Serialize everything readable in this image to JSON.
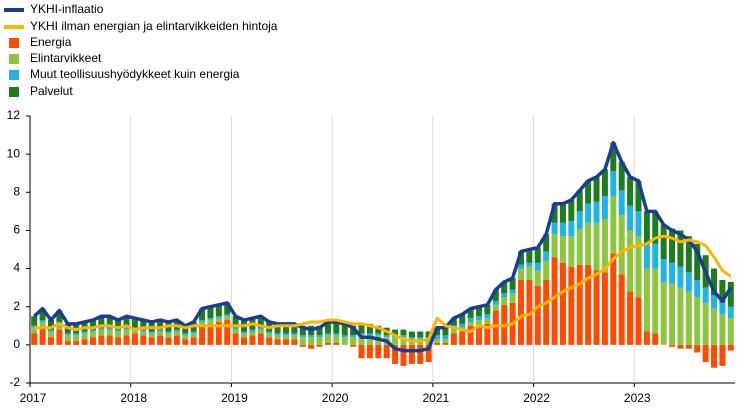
{
  "chart_data": {
    "type": "bar",
    "categories": [
      "2017",
      null,
      null,
      null,
      null,
      null,
      null,
      null,
      null,
      null,
      null,
      null,
      "2018",
      null,
      null,
      null,
      null,
      null,
      null,
      null,
      null,
      null,
      null,
      null,
      "2019",
      null,
      null,
      null,
      null,
      null,
      null,
      null,
      null,
      null,
      null,
      null,
      "2020",
      null,
      null,
      null,
      null,
      null,
      null,
      null,
      null,
      null,
      null,
      null,
      "2021",
      null,
      null,
      null,
      null,
      null,
      null,
      null,
      null,
      null,
      null,
      null,
      "2022",
      null,
      null,
      null,
      null,
      null,
      null,
      null,
      null,
      null,
      null,
      null,
      "2023",
      null,
      null,
      null,
      null,
      null,
      null,
      null,
      null,
      null,
      null,
      null
    ],
    "ylim": [
      -2,
      12
    ],
    "yticks": [
      -2,
      0,
      2,
      4,
      6,
      8,
      10,
      12
    ],
    "grid": true,
    "series": [
      {
        "name": "YKHI-inflaatio",
        "color": "#1b3d91",
        "type": "line",
        "values": [
          1.5,
          1.9,
          1.3,
          1.8,
          1.1,
          1.1,
          1.2,
          1.3,
          1.5,
          1.5,
          1.3,
          1.5,
          1.4,
          1.3,
          1.2,
          1.3,
          1.2,
          1.3,
          1.0,
          1.2,
          1.9,
          2.0,
          2.1,
          2.2,
          1.5,
          1.3,
          1.4,
          1.5,
          1.2,
          1.1,
          1.1,
          1.1,
          0.9,
          0.8,
          0.9,
          1.2,
          1.2,
          1.1,
          0.9,
          0.4,
          0.4,
          0.3,
          0.2,
          -0.2,
          -0.3,
          -0.3,
          -0.3,
          -0.2,
          0.9,
          0.9,
          1.4,
          1.6,
          1.9,
          2.0,
          2.1,
          2.9,
          3.3,
          3.5,
          4.9,
          5.0,
          5.1,
          5.8,
          7.4,
          7.4,
          7.6,
          8.1,
          8.6,
          8.8,
          9.2,
          10.6,
          9.6,
          8.8,
          8.6,
          7.0,
          7.0,
          6.3,
          6.0,
          5.8,
          5.5,
          4.9,
          3.8,
          2.8,
          2.3,
          3.0
        ]
      },
      {
        "name": "YKHI ilman energian ja elintarvikkeiden hintoja",
        "color": "#ffb400",
        "type": "line",
        "values": [
          0.9,
          0.9,
          0.9,
          1.1,
          0.9,
          0.8,
          0.9,
          0.9,
          1.0,
          1.0,
          0.9,
          1.0,
          0.8,
          0.9,
          0.9,
          0.9,
          1.0,
          1.0,
          0.9,
          1.0,
          1.0,
          1.0,
          1.0,
          1.0,
          1.0,
          1.0,
          1.1,
          1.0,
          0.9,
          1.0,
          1.0,
          1.0,
          1.1,
          1.2,
          1.2,
          1.3,
          1.3,
          1.2,
          1.1,
          1.1,
          1.0,
          0.9,
          0.7,
          0.5,
          0.3,
          0.2,
          0.2,
          0.3,
          1.4,
          1.0,
          0.9,
          0.8,
          0.7,
          1.0,
          0.9,
          1.0,
          1.0,
          1.1,
          1.5,
          1.6,
          2.0,
          2.2,
          2.5,
          2.8,
          3.0,
          3.2,
          3.5,
          3.7,
          4.0,
          4.5,
          4.9,
          5.1,
          5.2,
          5.3,
          5.6,
          5.7,
          5.6,
          5.4,
          5.5,
          5.4,
          5.2,
          4.6,
          3.9,
          3.6
        ]
      },
      {
        "name": "Energia",
        "color": "#ff4b00",
        "type": "bar",
        "values": [
          0.6,
          0.9,
          0.4,
          0.8,
          0.2,
          0.2,
          0.3,
          0.4,
          0.5,
          0.5,
          0.4,
          0.5,
          0.6,
          0.5,
          0.4,
          0.5,
          0.4,
          0.5,
          0.3,
          0.4,
          1.0,
          1.1,
          1.2,
          1.3,
          0.6,
          0.4,
          0.5,
          0.6,
          0.4,
          0.3,
          0.3,
          0.3,
          -0.1,
          -0.2,
          -0.1,
          0.1,
          0.1,
          0.0,
          -0.1,
          -0.7,
          -0.7,
          -0.7,
          -0.7,
          -1.0,
          -1.1,
          -1.0,
          -1.0,
          -0.9,
          0.1,
          0.1,
          0.6,
          0.7,
          1.0,
          1.0,
          1.1,
          1.8,
          2.1,
          2.2,
          3.4,
          3.4,
          3.1,
          3.4,
          4.6,
          4.3,
          4.1,
          4.2,
          4.2,
          3.9,
          3.8,
          4.8,
          3.7,
          2.8,
          2.5,
          0.7,
          0.6,
          0.0,
          -0.1,
          -0.2,
          -0.2,
          -0.4,
          -0.9,
          -1.2,
          -1.1,
          -0.3
        ]
      },
      {
        "name": "Elintarvikkeet",
        "color": "#8cc63f",
        "type": "bar",
        "values": [
          0.3,
          0.3,
          0.3,
          0.3,
          0.3,
          0.3,
          0.3,
          0.3,
          0.3,
          0.3,
          0.3,
          0.3,
          0.2,
          0.2,
          0.2,
          0.2,
          0.2,
          0.2,
          0.2,
          0.2,
          0.2,
          0.2,
          0.2,
          0.2,
          0.2,
          0.2,
          0.2,
          0.2,
          0.2,
          0.2,
          0.2,
          0.2,
          0.4,
          0.4,
          0.4,
          0.4,
          0.4,
          0.4,
          0.4,
          0.5,
          0.5,
          0.5,
          0.4,
          0.4,
          0.4,
          0.3,
          0.3,
          0.3,
          0.2,
          0.2,
          0.2,
          0.2,
          0.2,
          0.3,
          0.3,
          0.3,
          0.4,
          0.5,
          0.6,
          0.7,
          0.8,
          1.0,
          1.2,
          1.4,
          1.6,
          1.9,
          2.2,
          2.5,
          2.8,
          3.0,
          3.1,
          3.2,
          3.2,
          3.3,
          3.4,
          3.3,
          3.2,
          3.0,
          2.8,
          2.5,
          2.2,
          1.9,
          1.6,
          1.4
        ]
      },
      {
        "name": "Muut teollisuushyödykkeet kuin energia",
        "color": "#1fb3e6",
        "type": "bar",
        "values": [
          0.1,
          0.1,
          0.1,
          0.1,
          0.1,
          0.1,
          0.1,
          0.1,
          0.1,
          0.1,
          0.1,
          0.1,
          0.1,
          0.1,
          0.1,
          0.1,
          0.1,
          0.1,
          0.1,
          0.1,
          0.1,
          0.1,
          0.1,
          0.1,
          0.1,
          0.1,
          0.1,
          0.1,
          0.1,
          0.1,
          0.1,
          0.1,
          0.1,
          0.1,
          0.1,
          0.1,
          0.1,
          0.1,
          0.1,
          0.1,
          0.1,
          0.1,
          0.1,
          0.1,
          0.1,
          0.1,
          0.1,
          0.1,
          0.2,
          0.2,
          0.2,
          0.2,
          0.2,
          0.2,
          0.2,
          0.2,
          0.2,
          0.2,
          0.2,
          0.2,
          0.4,
          0.5,
          0.6,
          0.7,
          0.8,
          0.9,
          1.0,
          1.1,
          1.2,
          1.3,
          1.3,
          1.3,
          1.3,
          1.3,
          1.3,
          1.2,
          1.1,
          1.1,
          1.0,
          0.9,
          0.8,
          0.7,
          0.6,
          0.6
        ]
      },
      {
        "name": "Palvelut",
        "color": "#1e7b1e",
        "type": "bar",
        "values": [
          0.5,
          0.6,
          0.5,
          0.6,
          0.5,
          0.5,
          0.5,
          0.5,
          0.6,
          0.6,
          0.5,
          0.6,
          0.5,
          0.5,
          0.5,
          0.5,
          0.5,
          0.5,
          0.4,
          0.5,
          0.6,
          0.6,
          0.6,
          0.6,
          0.6,
          0.6,
          0.6,
          0.6,
          0.5,
          0.5,
          0.5,
          0.5,
          0.5,
          0.5,
          0.5,
          0.6,
          0.6,
          0.6,
          0.5,
          0.5,
          0.5,
          0.4,
          0.4,
          0.3,
          0.3,
          0.3,
          0.3,
          0.3,
          0.4,
          0.4,
          0.4,
          0.5,
          0.5,
          0.5,
          0.5,
          0.6,
          0.6,
          0.6,
          0.7,
          0.7,
          0.8,
          0.9,
          1.0,
          1.0,
          1.1,
          1.1,
          1.2,
          1.3,
          1.4,
          1.5,
          1.5,
          1.5,
          1.6,
          1.7,
          1.7,
          1.8,
          1.8,
          1.9,
          1.9,
          1.9,
          1.7,
          1.4,
          1.2,
          1.3
        ]
      }
    ]
  }
}
